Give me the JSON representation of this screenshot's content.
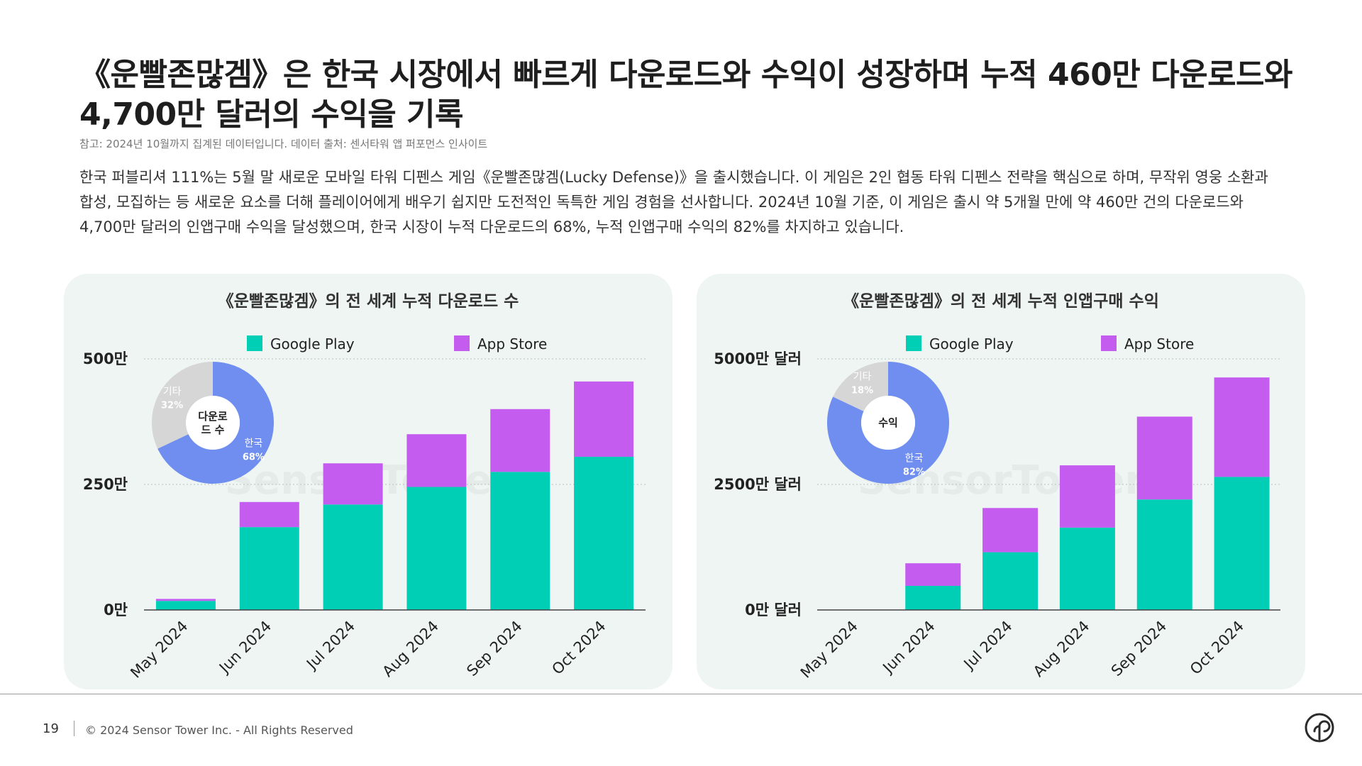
{
  "page": {
    "title": "《운빨존많겜》은 한국 시장에서 빠르게 다운로드와 수익이 성장하며 누적 460만 다운로드와 4,700만 달러의 수익을 기록",
    "note": "참고: 2024년 10월까지 집계된 데이터입니다. 데이터 출처: 센서타워 앱 퍼포먼스 인사이트",
    "description": "한국 퍼블리셔 111%는 5월 말 새로운 모바일 타워 디펜스 게임《운빨존많겜(Lucky Defense)》을 출시했습니다. 이 게임은 2인 협동 타워 디펜스 전략을 핵심으로 하며, 무작위 영웅 소환과 합성, 모집하는 등 새로운 요소를 더해 플레이어에게 배우기 쉽지만 도전적인 독특한 게임 경험을 선사합니다. 2024년 10월 기준, 이 게임은 출시 약 5개월 만에 약 460만 건의 다운로드와 4,700만 달러의 인앱구매 수익을 달성했으며, 한국 시장이 누적 다운로드의 68%, 누적 인앱구매 수익의 82%를 차지하고 있습니다."
  },
  "chart_data": [
    {
      "type": "bar",
      "stacked": true,
      "title": "《운빨존많겜》의 전 세계 누적 다운로드 수",
      "categories": [
        "May 2024",
        "Jun 2024",
        "Jul 2024",
        "Aug 2024",
        "Sep 2024",
        "Oct 2024"
      ],
      "series": [
        {
          "name": "Google Play",
          "color": "#00cfb5",
          "values": [
            18,
            165,
            210,
            245,
            275,
            305
          ]
        },
        {
          "name": "App Store",
          "color": "#c45cf0",
          "values": [
            4,
            50,
            82,
            105,
            125,
            150
          ]
        }
      ],
      "ylim": [
        0,
        500
      ],
      "yticks": [
        0,
        250,
        500
      ],
      "ytick_labels": [
        "0만",
        "250만",
        "500만"
      ],
      "legend": "top",
      "grid": true,
      "donut": {
        "center_label": "다운로\n드 수",
        "slices": [
          {
            "label": "한국",
            "value": 68,
            "value_label": "68%",
            "color": "#6f8ef0"
          },
          {
            "label": "기타",
            "value": 32,
            "value_label": "32%",
            "color": "#d6d6d6"
          }
        ]
      }
    },
    {
      "type": "bar",
      "stacked": true,
      "title": "《운빨존많겜》의 전 세계 누적 인앱구매 수익",
      "categories": [
        "May 2024",
        "Jun 2024",
        "Jul 2024",
        "Aug 2024",
        "Sep 2024",
        "Oct 2024"
      ],
      "series": [
        {
          "name": "Google Play",
          "color": "#00cfb5",
          "values": [
            0.1,
            480,
            1150,
            1640,
            2200,
            2650
          ]
        },
        {
          "name": "App Store",
          "color": "#c45cf0",
          "values": [
            0.05,
            450,
            880,
            1240,
            1650,
            1980
          ]
        }
      ],
      "ylim": [
        0,
        5000
      ],
      "yticks": [
        0,
        2500,
        5000
      ],
      "ytick_labels": [
        "0만 달러",
        "2500만 달러",
        "5000만 달러"
      ],
      "legend": "top",
      "grid": true,
      "donut": {
        "center_label": "수익",
        "slices": [
          {
            "label": "한국",
            "value": 82,
            "value_label": "82%",
            "color": "#6f8ef0"
          },
          {
            "label": "기타",
            "value": 18,
            "value_label": "18%",
            "color": "#d6d6d6"
          }
        ]
      }
    }
  ],
  "footer": {
    "page_number": "19",
    "copyright": "© 2024 Sensor Tower Inc. - All Rights Reserved"
  },
  "watermark": "SensorTower"
}
